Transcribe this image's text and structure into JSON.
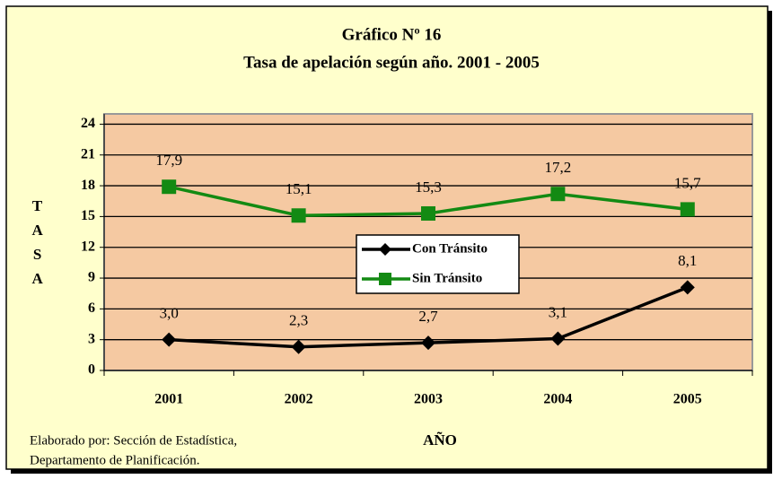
{
  "chart_data": {
    "type": "line",
    "title": "Gráfico Nº 16",
    "subtitle": "Tasa de apelación según año. 2001 - 2005",
    "ylabel": "TASA",
    "xlabel": "AÑO",
    "source": [
      "Elaborado por: Sección de Estadística,",
      "Departamento de Planificación."
    ],
    "categories": [
      "2001",
      "2002",
      "2003",
      "2004",
      "2005"
    ],
    "series": [
      {
        "name": "Con Tránsito",
        "color": "#000000",
        "marker": "diamond",
        "values": [
          3.0,
          2.3,
          2.7,
          3.1,
          8.1
        ],
        "value_labels": [
          "3,0",
          "2,3",
          "2,7",
          "3,1",
          "8,1"
        ]
      },
      {
        "name": "Sin Tránsito",
        "color": "#138a13",
        "marker": "square",
        "values": [
          17.9,
          15.1,
          15.3,
          17.2,
          15.7
        ],
        "value_labels": [
          "17,9",
          "15,1",
          "15,3",
          "17,2",
          "15,7"
        ]
      }
    ],
    "ylim": [
      0,
      25
    ],
    "yticks": [
      0,
      3,
      6,
      9,
      12,
      15,
      18,
      21,
      24
    ],
    "grid": true,
    "legend": "center"
  }
}
